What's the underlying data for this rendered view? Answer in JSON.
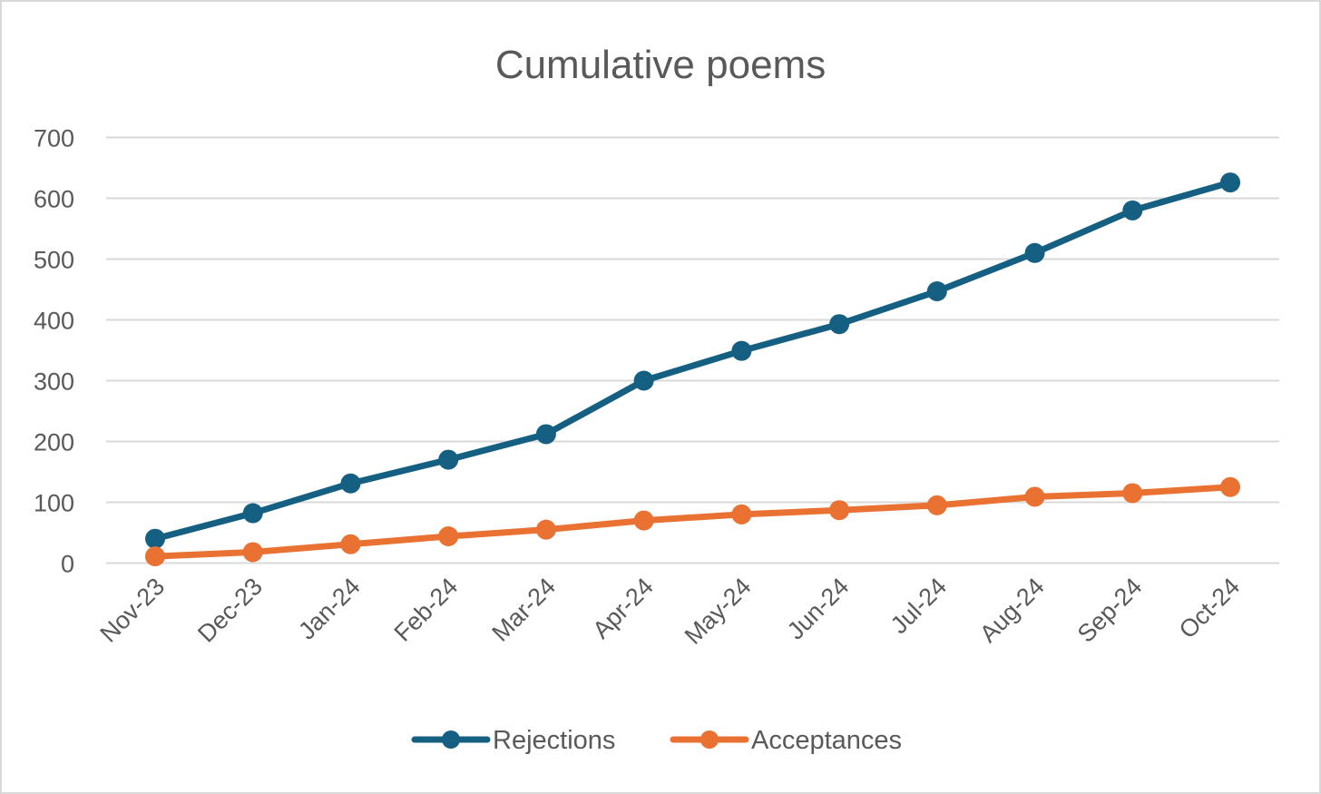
{
  "chart_data": {
    "type": "line",
    "title": "Cumulative poems",
    "xlabel": "",
    "ylabel": "",
    "categories": [
      "Nov-23",
      "Dec-23",
      "Jan-24",
      "Feb-24",
      "Mar-24",
      "Apr-24",
      "May-24",
      "Jun-24",
      "Jul-24",
      "Aug-24",
      "Sep-24",
      "Oct-24"
    ],
    "series": [
      {
        "name": "Rejections",
        "color": "#156082",
        "values": [
          40,
          82,
          131,
          170,
          212,
          300,
          349,
          393,
          447,
          510,
          580,
          626
        ]
      },
      {
        "name": "Acceptances",
        "color": "#E97132",
        "values": [
          11,
          18,
          31,
          44,
          55,
          70,
          80,
          87,
          95,
          109,
          115,
          125
        ]
      }
    ],
    "ylim": [
      0,
      700
    ],
    "yticks": [
      0,
      100,
      200,
      300,
      400,
      500,
      600,
      700
    ],
    "ytick_labels": [
      "0",
      "100",
      "200",
      "300",
      "400",
      "500",
      "600",
      "700"
    ],
    "grid": true,
    "legend_position": "bottom",
    "markers": true
  }
}
